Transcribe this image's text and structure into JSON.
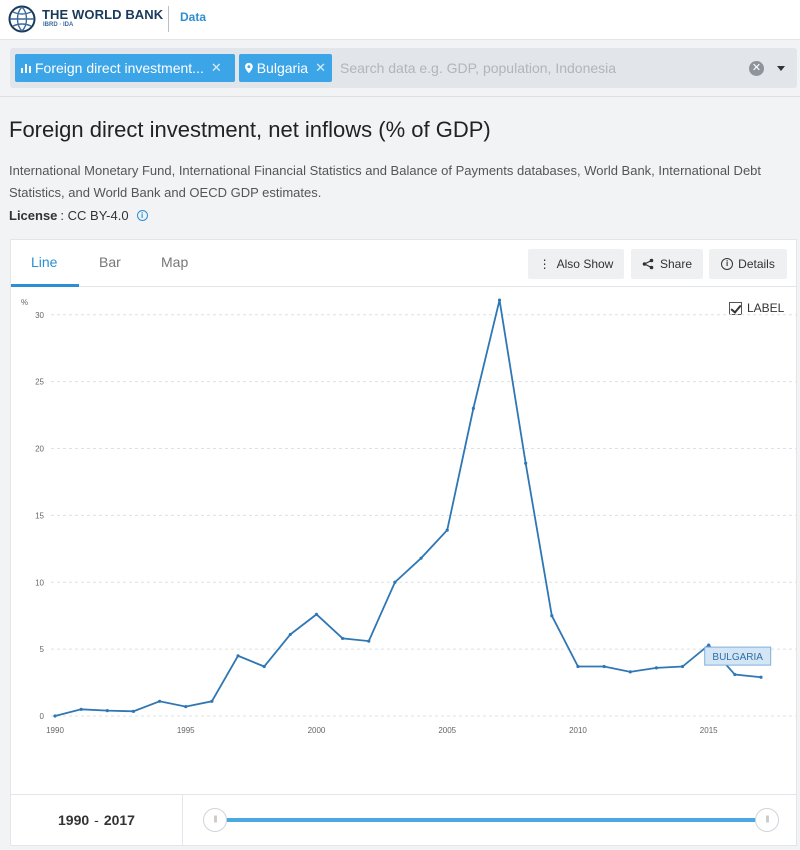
{
  "header": {
    "brand": "THE WORLD BANK",
    "brand_sub": "IBRD · IDA",
    "section_link": "Data"
  },
  "search": {
    "chips": [
      {
        "label": "Foreign direct investment...",
        "icon": "bar-chart-icon"
      },
      {
        "label": "Bulgaria",
        "icon": "location-pin-icon"
      }
    ],
    "placeholder": "Search data e.g. GDP, population, Indonesia"
  },
  "page": {
    "title": "Foreign direct investment, net inflows (% of GDP)",
    "source": "International Monetary Fund, International Financial Statistics and Balance of Payments databases, World Bank, International Debt Statistics, and World Bank and OECD GDP estimates.",
    "license_label": "License",
    "license_value": ": CC BY-4.0"
  },
  "tabs": [
    "Line",
    "Bar",
    "Map"
  ],
  "actions": {
    "also_show": "Also Show",
    "share": "Share",
    "details": "Details"
  },
  "label_toggle": "LABEL",
  "colors": {
    "accent": "#2b8fd2",
    "series": "#2f77b4",
    "chip": "#3ba5e8"
  },
  "range": {
    "start": "1990",
    "end": "2017"
  },
  "chart_data": {
    "type": "line",
    "ylabel": "%",
    "ylim": [
      0,
      32
    ],
    "yticks": [
      0,
      5,
      10,
      15,
      20,
      25,
      30
    ],
    "xticks": [
      1990,
      1995,
      2000,
      2005,
      2010,
      2015
    ],
    "grid": true,
    "series": [
      {
        "name": "BULGARIA",
        "x": [
          1990,
          1991,
          1992,
          1993,
          1994,
          1995,
          1996,
          1997,
          1998,
          1999,
          2000,
          2001,
          2002,
          2003,
          2004,
          2005,
          2006,
          2007,
          2008,
          2009,
          2010,
          2011,
          2012,
          2013,
          2014,
          2015,
          2016,
          2017
        ],
        "values": [
          0.0,
          0.5,
          0.4,
          0.35,
          1.1,
          0.7,
          1.1,
          4.5,
          3.7,
          6.1,
          7.6,
          5.8,
          5.6,
          10.0,
          11.8,
          13.9,
          23.0,
          31.1,
          18.9,
          7.5,
          3.7,
          3.7,
          3.3,
          3.6,
          3.7,
          5.3,
          3.1,
          2.9
        ]
      }
    ]
  }
}
